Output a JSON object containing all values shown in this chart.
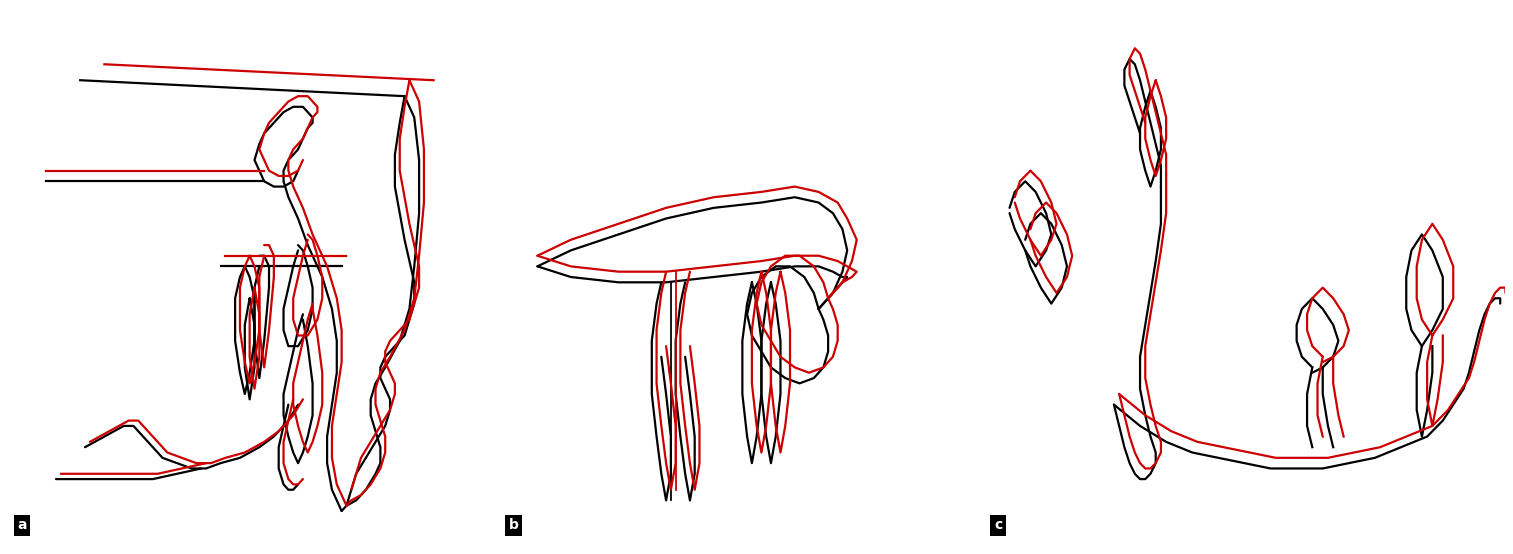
{
  "background_color": "#ffffff",
  "border_color": "#000000",
  "black_color": "#000000",
  "red_color": "#cc0000",
  "line_width": 1.6,
  "label_bg": "#000000",
  "label_fg": "#ffffff",
  "label_fontsize": 10,
  "fig_width": 15.13,
  "fig_height": 5.54,
  "panel_labels": [
    "a",
    "b",
    "c"
  ]
}
